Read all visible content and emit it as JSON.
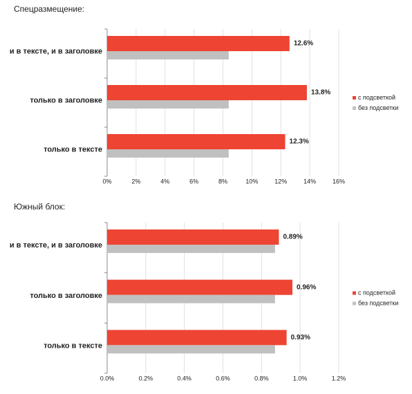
{
  "chart_data": [
    {
      "type": "bar",
      "orientation": "horizontal",
      "title": "Спецразмещение:",
      "categories": [
        "и в тексте, и в заголовке",
        "только в заголовке",
        "только в тексте"
      ],
      "series": [
        {
          "name": "с подсветкой",
          "color": "#ee4433",
          "values": [
            12.6,
            13.8,
            12.3
          ],
          "value_labels": [
            "12.6%",
            "13.8%",
            "12.3%"
          ]
        },
        {
          "name": "без подсветки",
          "color": "#c0c0c0",
          "values": [
            8.4,
            8.4,
            8.4
          ]
        }
      ],
      "xlim": [
        0,
        16
      ],
      "xticks": [
        {
          "value": 0,
          "label": "0%"
        },
        {
          "value": 2,
          "label": "2%"
        },
        {
          "value": 4,
          "label": "4%"
        },
        {
          "value": 6,
          "label": "6%"
        },
        {
          "value": 8,
          "label": "8%"
        },
        {
          "value": 10,
          "label": "10%"
        },
        {
          "value": 12,
          "label": "12%"
        },
        {
          "value": 14,
          "label": "14%"
        },
        {
          "value": 16,
          "label": "16%"
        }
      ],
      "grid": true
    },
    {
      "type": "bar",
      "orientation": "horizontal",
      "title": "Южный блок:",
      "categories": [
        "и в тексте, и в заголовке",
        "только в заголовке",
        "только в тексте"
      ],
      "series": [
        {
          "name": "с подсветкой",
          "color": "#ee4433",
          "values": [
            0.89,
            0.96,
            0.93
          ],
          "value_labels": [
            "0.89%",
            "0.96%",
            "0.93%"
          ]
        },
        {
          "name": "без подсветки",
          "color": "#c0c0c0",
          "values": [
            0.87,
            0.87,
            0.87
          ]
        }
      ],
      "xlim": [
        0,
        1.2
      ],
      "xticks": [
        {
          "value": 0,
          "label": "0.0%"
        },
        {
          "value": 0.2,
          "label": "0.2%"
        },
        {
          "value": 0.4,
          "label": "0.4%"
        },
        {
          "value": 0.6,
          "label": "0.6%"
        },
        {
          "value": 0.8,
          "label": "0.8%"
        },
        {
          "value": 1.0,
          "label": "1.0%"
        },
        {
          "value": 1.2,
          "label": "1.2%"
        }
      ],
      "grid": true
    }
  ]
}
